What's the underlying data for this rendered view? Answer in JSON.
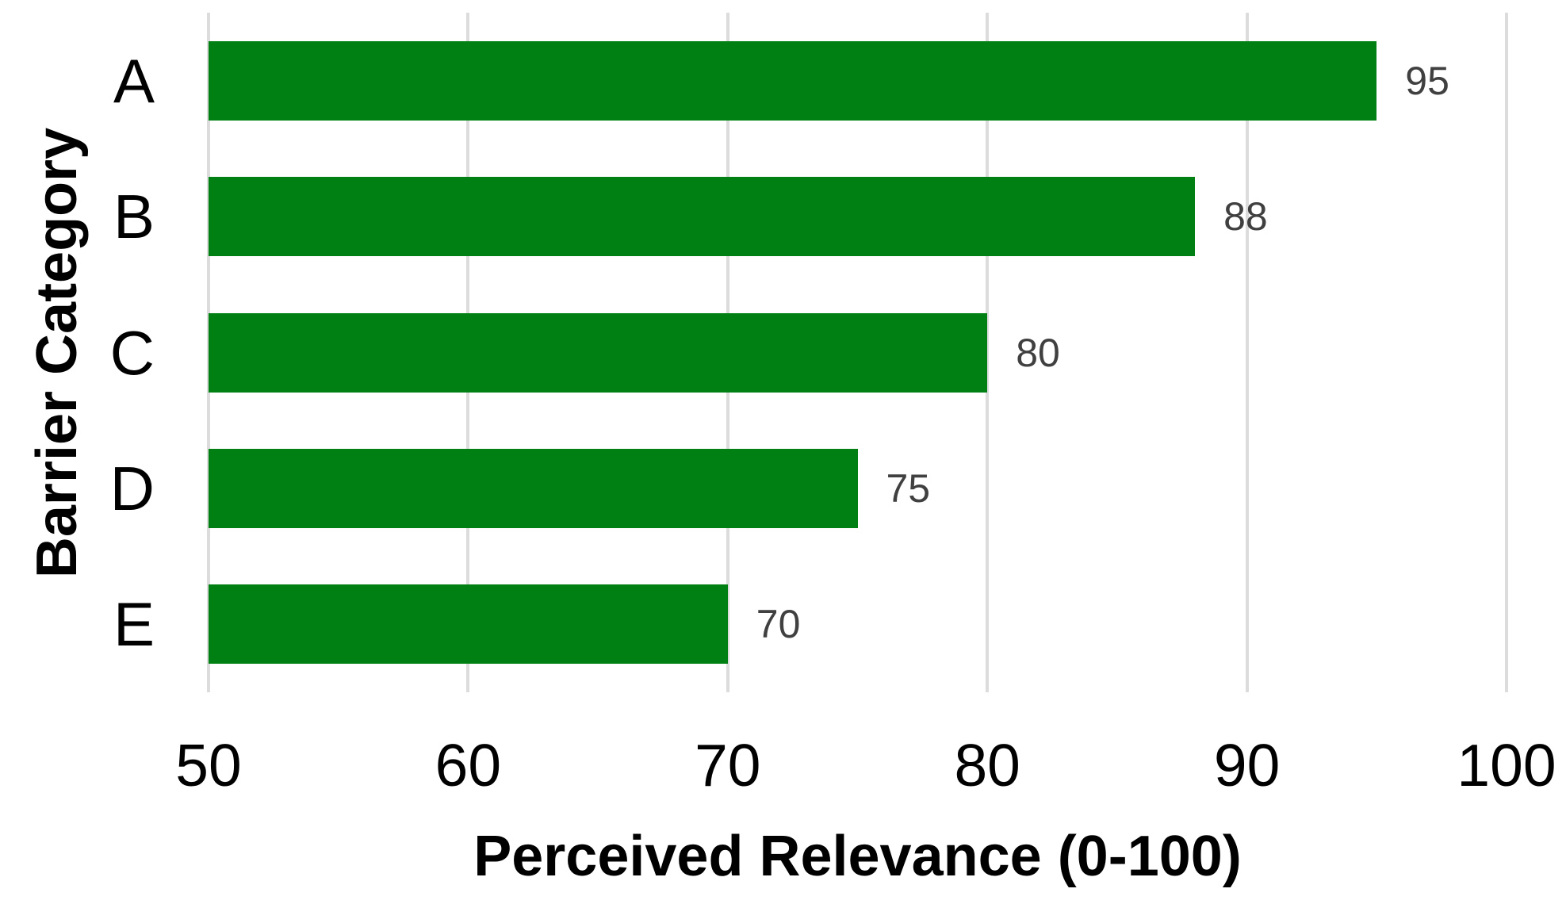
{
  "chart_data": {
    "type": "bar",
    "orientation": "horizontal",
    "categories": [
      "A",
      "B",
      "C",
      "D",
      "E"
    ],
    "values": [
      95,
      88,
      80,
      75,
      70
    ],
    "title": "",
    "xlabel": "Perceived Relevance (0-100)",
    "ylabel": "Barrier Category",
    "xlim": [
      50,
      100
    ],
    "xticks": [
      50,
      60,
      70,
      80,
      90,
      100
    ],
    "grid": "vertical-only",
    "legend": "none",
    "data_labels_shown": true,
    "colors": {
      "bar": "#008012",
      "gridline": "#dcdcdc",
      "data_label": "#404040",
      "axis_text": "#000000",
      "background": "#ffffff"
    }
  }
}
